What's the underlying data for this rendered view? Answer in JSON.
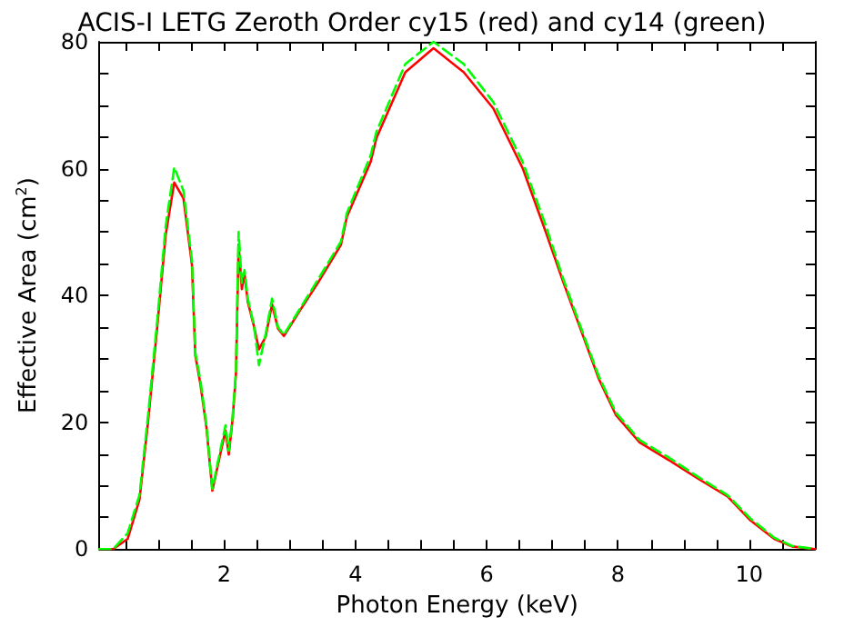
{
  "chart_data": {
    "type": "line",
    "title": "ACIS-I LETG Zeroth Order cy15 (red) and cy14 (green)",
    "xlabel": "Photon Energy (keV)",
    "ylabel": "Effective Area (cm$^{2}$)",
    "xlim": [
      0.1,
      11
    ],
    "ylim": [
      0,
      80
    ],
    "xticks": [
      {
        "value": 0.5,
        "label": null
      },
      {
        "value": 1,
        "label": null
      },
      {
        "value": 1.5,
        "label": null
      },
      2,
      {
        "value": 2.5,
        "label": null
      },
      {
        "value": 3,
        "label": null
      },
      {
        "value": 3.5,
        "label": null
      },
      4,
      {
        "value": 4.5,
        "label": null
      },
      {
        "value": 5,
        "label": null
      },
      {
        "value": 5.5,
        "label": null
      },
      6,
      {
        "value": 6.5,
        "label": null
      },
      {
        "value": 7,
        "label": null
      },
      {
        "value": 7.5,
        "label": null
      },
      8,
      {
        "value": 8.5,
        "label": null
      },
      {
        "value": 9,
        "label": null
      },
      {
        "value": 9.5,
        "label": null
      },
      10,
      {
        "value": 10.5,
        "label": null
      }
    ],
    "yticks": [
      0,
      {
        "value": 5,
        "label": null
      },
      {
        "value": 10,
        "label": null
      },
      {
        "value": 15,
        "label": null
      },
      20,
      {
        "value": 25,
        "label": null
      },
      {
        "value": 30,
        "label": null
      },
      {
        "value": 35,
        "label": null
      },
      40,
      {
        "value": 45,
        "label": null
      },
      {
        "value": 50,
        "label": null
      },
      {
        "value": 55,
        "label": null
      },
      60,
      {
        "value": 65,
        "label": null
      },
      {
        "value": 70,
        "label": null
      },
      {
        "value": 75,
        "label": null
      },
      80
    ],
    "grid": false,
    "marker": "none",
    "x": [
      0.1,
      0.31,
      0.53,
      0.71,
      0.84,
      0.98,
      1.11,
      1.24,
      1.38,
      1.51,
      1.56,
      1.64,
      1.73,
      1.82,
      1.91,
      2.02,
      2.07,
      2.13,
      2.18,
      2.22,
      2.27,
      2.31,
      2.36,
      2.45,
      2.53,
      2.63,
      2.73,
      2.82,
      2.91,
      3.16,
      3.43,
      3.78,
      3.87,
      4.23,
      4.32,
      4.76,
      5.19,
      5.65,
      6.1,
      6.55,
      6.9,
      7.17,
      7.44,
      7.71,
      7.97,
      8.33,
      8.78,
      9.22,
      9.67,
      10.02,
      10.38,
      10.65,
      11
    ],
    "series": [
      {
        "color": "#ff0000",
        "line_style": "solid",
        "values": [
          0,
          0,
          1.6,
          7.8,
          20,
          35,
          49.6,
          57.8,
          55.3,
          44.8,
          30.6,
          25.9,
          19.2,
          9.2,
          13.5,
          18.7,
          14.9,
          20.6,
          27.7,
          48,
          41,
          43.4,
          39,
          35.3,
          31.5,
          33.4,
          38.6,
          34.8,
          33.6,
          37.7,
          42,
          48,
          52.4,
          61,
          64.8,
          75.2,
          79,
          75.2,
          69.5,
          60,
          50,
          42,
          34.4,
          26.8,
          21.1,
          16.8,
          14,
          11.1,
          8.3,
          4.5,
          1.6,
          0.4,
          0
        ]
      },
      {
        "color": "#00ff00",
        "line_style": "dashed",
        "values": [
          0,
          0,
          2.5,
          8.5,
          21,
          36,
          51,
          60.2,
          56.5,
          45.5,
          31,
          26.5,
          19.5,
          9.5,
          14,
          19.5,
          15.5,
          21,
          28,
          50,
          42,
          44,
          39.5,
          35.5,
          29,
          33.8,
          39.5,
          35,
          33.8,
          38,
          42.5,
          48.5,
          53,
          62,
          65.8,
          76.5,
          80,
          76.5,
          70.5,
          61,
          51,
          42.5,
          34.8,
          27.2,
          21.5,
          17.2,
          14.4,
          11.4,
          8.5,
          4.8,
          1.8,
          0.5,
          0
        ]
      }
    ]
  }
}
